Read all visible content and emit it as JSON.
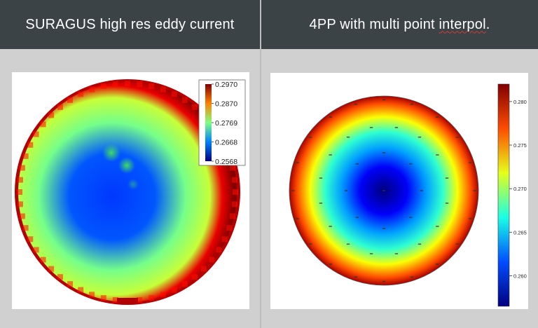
{
  "header": {
    "left_title": "SURAGUS high res eddy current",
    "right_title_prefix": "4PP with multi point ",
    "right_title_spellword": "interpol",
    "right_title_suffix": "."
  },
  "colors": {
    "header_bg": "#3c4347",
    "page_bg": "#d0d0d0",
    "panel_bg": "#ffffff"
  },
  "chart_data": [
    {
      "type": "heatmap",
      "title": "SURAGUS high res eddy current",
      "shape": "wafer-map",
      "colormap": "jet",
      "colorbar_range": [
        0.2568,
        0.297
      ],
      "colorbar_ticks": [
        "0.2970",
        "0.2870",
        "0.2769",
        "0.2668",
        "0.2568"
      ],
      "center_value": 0.264,
      "edge_value": 0.297,
      "mid_value": 0.2765,
      "legend_position": "top-right"
    },
    {
      "type": "heatmap",
      "title": "4PP with multi point interpol.",
      "shape": "wafer-map",
      "colormap": "jet",
      "colorbar_range": [
        0.2565,
        0.282
      ],
      "colorbar_ticks": [
        "0.280",
        "0.275",
        "0.270",
        "0.265",
        "0.260"
      ],
      "center_value": 0.2575,
      "edge_value": 0.281,
      "legend_position": "right",
      "measurement_rings": [
        {
          "radius_fraction": 0.96,
          "count": 20
        },
        {
          "radius_fraction": 0.68,
          "count": 16
        },
        {
          "radius_fraction": 0.4,
          "count": 8
        },
        {
          "radius_fraction": 0.0,
          "count": 1
        }
      ]
    }
  ]
}
